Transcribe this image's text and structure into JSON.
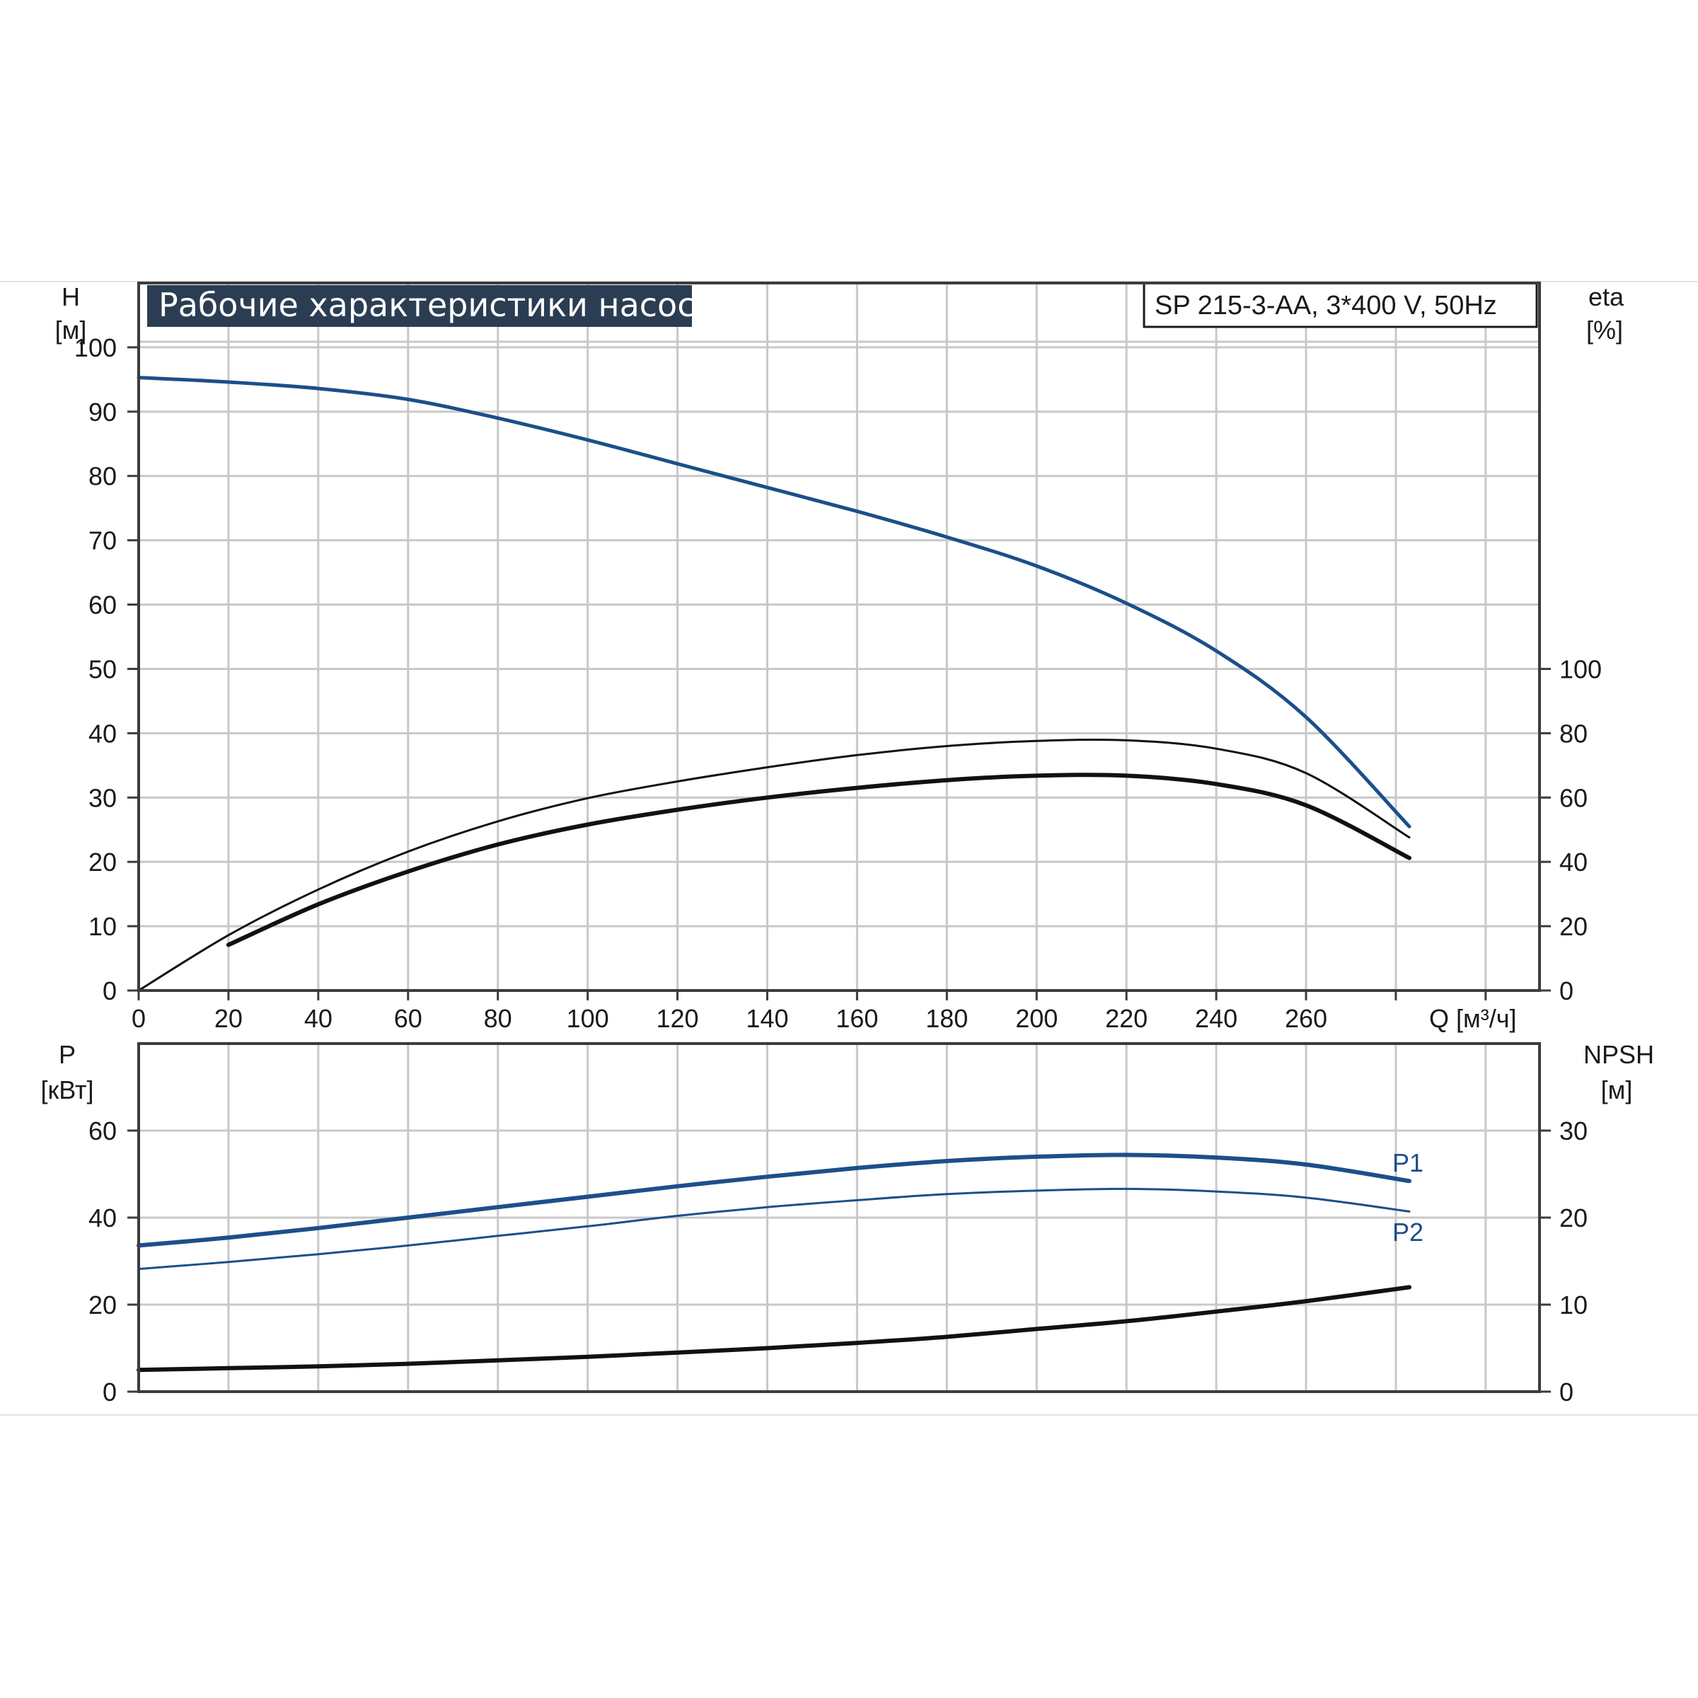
{
  "header": {
    "title": "Рабочие характеристики насоса",
    "model": "SP 215-3-AA, 3*400 V, 50Hz"
  },
  "colors": {
    "blue": "#1c4f8a",
    "black": "#111111",
    "title_bg": "#2b3d52"
  },
  "chart_data": [
    {
      "type": "line",
      "name": "upper",
      "ylabel_left_symbol": "H",
      "ylabel_left_unit": "[м]",
      "ylabel_right_symbol": "eta",
      "ylabel_right_unit": "[%]",
      "xlabel": "Q [м³/ч]",
      "xlim": [
        0,
        312
      ],
      "ylim_left": [
        0,
        110
      ],
      "ylim_right": [
        0,
        220
      ],
      "x_ticks": [
        0,
        20,
        40,
        60,
        80,
        100,
        120,
        140,
        160,
        180,
        200,
        220,
        240,
        260
      ],
      "x_grid": [
        0,
        20,
        40,
        60,
        80,
        100,
        120,
        140,
        160,
        180,
        200,
        220,
        240,
        260,
        280,
        300
      ],
      "y_ticks_left": [
        0,
        10,
        20,
        30,
        40,
        50,
        60,
        70,
        80,
        90,
        100
      ],
      "y_ticks_right": [
        0,
        20,
        40,
        60,
        80,
        100
      ],
      "grid": true,
      "series": [
        {
          "key": "H",
          "axis": "left",
          "color": "#1c4f8a",
          "width": 5,
          "x": [
            0,
            20,
            40,
            60,
            80,
            100,
            120,
            140,
            160,
            180,
            200,
            220,
            240,
            260,
            283
          ],
          "y": [
            95.3,
            94.6,
            93.6,
            91.9,
            89.0,
            85.6,
            81.9,
            78.2,
            74.5,
            70.5,
            66.0,
            60.2,
            52.8,
            42.5,
            25.5
          ]
        },
        {
          "key": "eta_pump",
          "axis": "right",
          "color": "#111111",
          "width": 3,
          "x": [
            0,
            20,
            40,
            60,
            80,
            100,
            120,
            140,
            160,
            180,
            200,
            220,
            240,
            260,
            283
          ],
          "y": [
            0,
            17.2,
            31.4,
            43.2,
            52.6,
            59.8,
            65.0,
            69.4,
            73.2,
            76.0,
            77.6,
            77.8,
            75.2,
            67.6,
            47.6
          ]
        },
        {
          "key": "eta_total",
          "axis": "right",
          "color": "#111111",
          "width": 6,
          "x": [
            20,
            40,
            60,
            80,
            100,
            120,
            140,
            160,
            180,
            200,
            220,
            240,
            260,
            283
          ],
          "y": [
            14.2,
            26.8,
            37.0,
            45.4,
            51.6,
            56.2,
            60.0,
            63.0,
            65.4,
            66.8,
            66.8,
            64.2,
            57.6,
            41.2
          ]
        }
      ]
    },
    {
      "type": "line",
      "name": "lower",
      "ylabel_left_symbol": "P",
      "ylabel_left_unit": "[кВт]",
      "ylabel_right_symbol": "NPSH",
      "ylabel_right_unit": "[м]",
      "xlim": [
        0,
        312
      ],
      "ylim_left": [
        0,
        80
      ],
      "ylim_right": [
        0,
        40
      ],
      "y_ticks_left": [
        0,
        20,
        40,
        60
      ],
      "y_ticks_right": [
        0,
        10,
        20,
        30
      ],
      "grid": true,
      "series": [
        {
          "key": "P1",
          "name": "P1",
          "axis": "left",
          "color": "#1c4f8a",
          "width": 6,
          "x": [
            0,
            20,
            40,
            60,
            80,
            100,
            120,
            140,
            160,
            180,
            200,
            220,
            240,
            260,
            283
          ],
          "y": [
            33.6,
            35.4,
            37.6,
            40.0,
            42.4,
            44.8,
            47.2,
            49.4,
            51.4,
            53.0,
            54.0,
            54.4,
            53.8,
            52.2,
            48.4
          ]
        },
        {
          "key": "P2",
          "name": "P2",
          "axis": "left",
          "color": "#1c4f8a",
          "width": 3,
          "x": [
            0,
            20,
            40,
            60,
            80,
            100,
            120,
            140,
            160,
            180,
            200,
            220,
            240,
            260,
            283
          ],
          "y": [
            28.2,
            29.8,
            31.6,
            33.6,
            35.8,
            38.0,
            40.4,
            42.4,
            44.0,
            45.4,
            46.2,
            46.6,
            46.0,
            44.6,
            41.4
          ]
        },
        {
          "key": "NPSH",
          "axis": "right",
          "color": "#111111",
          "width": 6,
          "x": [
            0,
            20,
            40,
            60,
            80,
            100,
            120,
            140,
            160,
            180,
            200,
            220,
            240,
            260,
            283
          ],
          "y": [
            2.5,
            2.7,
            2.9,
            3.2,
            3.6,
            4.0,
            4.5,
            5.0,
            5.6,
            6.3,
            7.2,
            8.1,
            9.2,
            10.4,
            12.0
          ]
        }
      ]
    }
  ]
}
